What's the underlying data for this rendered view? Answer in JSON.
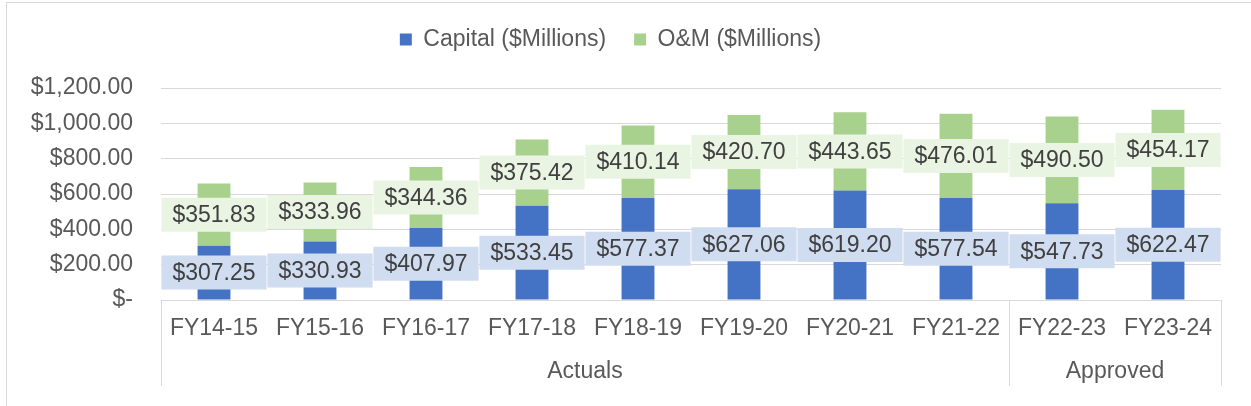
{
  "chart_data": {
    "type": "bar",
    "stacked": true,
    "categories": [
      "FY14-15",
      "FY15-16",
      "FY16-17",
      "FY17-18",
      "FY18-19",
      "FY19-20",
      "FY20-21",
      "FY21-22",
      "FY22-23",
      "FY23-24"
    ],
    "series": [
      {
        "name": "Capital ($Millions)",
        "color": "#4472c4",
        "values": [
          307.25,
          330.93,
          407.97,
          533.45,
          577.37,
          627.06,
          619.2,
          577.54,
          547.73,
          622.47
        ],
        "value_labels": [
          "$307.25",
          "$330.93",
          "$407.97",
          "$533.45",
          "$577.37",
          "$627.06",
          "$619.20",
          "$577.54",
          "$547.73",
          "$622.47"
        ]
      },
      {
        "name": "O&M ($Millions)",
        "color": "#a9d18e",
        "values": [
          351.83,
          333.96,
          344.36,
          375.42,
          410.14,
          420.7,
          443.65,
          476.01,
          490.5,
          454.17
        ],
        "value_labels": [
          "$351.83",
          "$333.96",
          "$344.36",
          "$375.42",
          "$410.14",
          "$420.70",
          "$443.65",
          "$476.01",
          "$490.50",
          "$454.17"
        ]
      }
    ],
    "ylim": [
      0,
      1200
    ],
    "yticks": [
      {
        "value": 0,
        "label": "$-"
      },
      {
        "value": 200,
        "label": "$200.00"
      },
      {
        "value": 400,
        "label": "$400.00"
      },
      {
        "value": 600,
        "label": "$600.00"
      },
      {
        "value": 800,
        "label": "$800.00"
      },
      {
        "value": 1000,
        "label": "$1,000.00"
      },
      {
        "value": 1200,
        "label": "$1,200.00"
      }
    ],
    "grid": "y",
    "legend": "top",
    "annotations": [
      "Actuals",
      "Approved"
    ]
  }
}
